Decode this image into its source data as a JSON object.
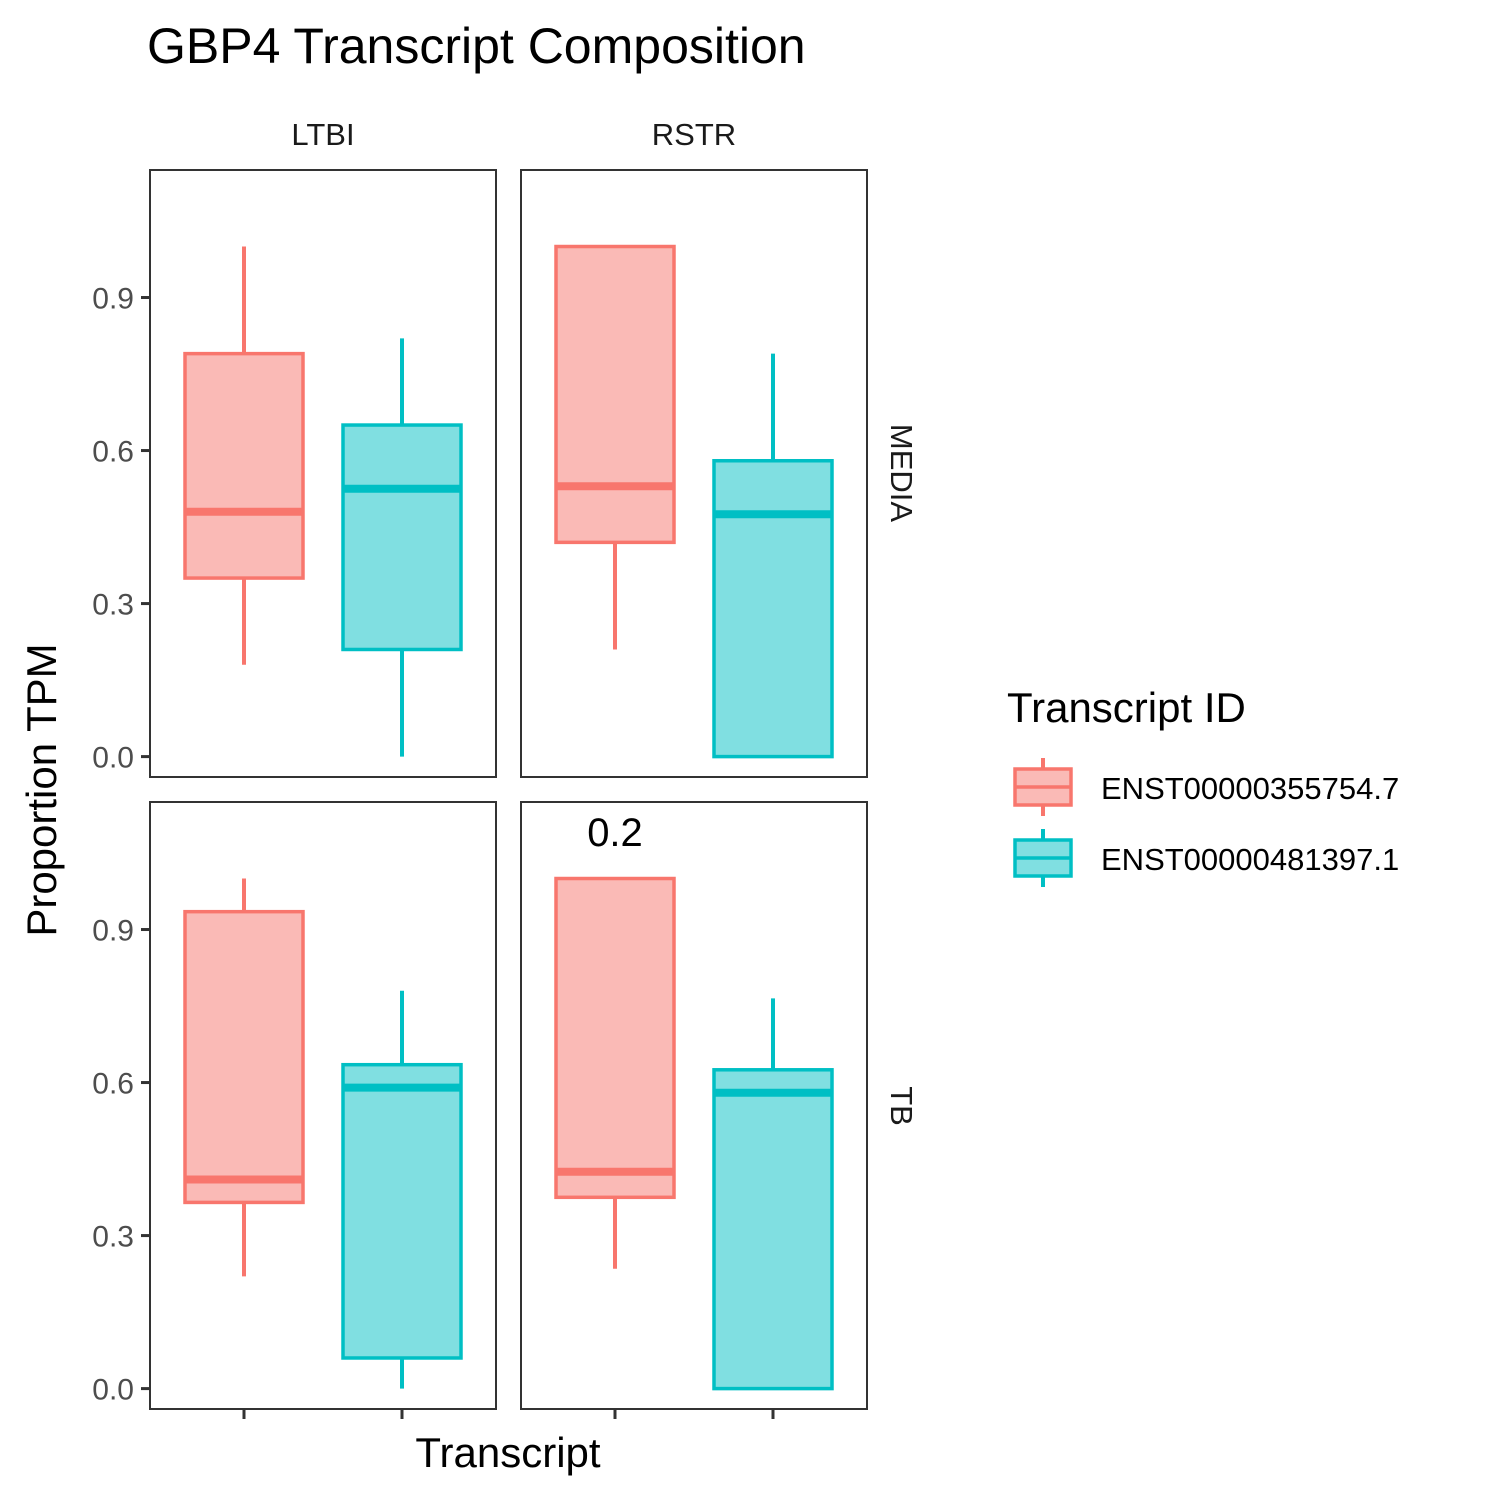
{
  "chart_data": {
    "type": "boxplot",
    "title": "GBP4 Transcript Composition",
    "xlabel": "Transcript",
    "ylabel": "Proportion TPM",
    "ylim": [
      -0.04,
      1.15
    ],
    "yticks": [
      "0.0",
      "0.3",
      "0.6",
      "0.9"
    ],
    "ytick_values": [
      0.0,
      0.3,
      0.6,
      0.9
    ],
    "col_facets": [
      "LTBI",
      "RSTR"
    ],
    "row_facets": [
      "MEDIA",
      "TB"
    ],
    "legend": {
      "title": "Transcript ID",
      "position": "right",
      "entries": [
        {
          "label": "ENST00000355754.7",
          "color": "#F8766D",
          "fill": "#FABAB6"
        },
        {
          "label": "ENST00000481397.1",
          "color": "#00BFC4",
          "fill": "#80DFE1"
        }
      ]
    },
    "panels": [
      {
        "row": "MEDIA",
        "col": "LTBI",
        "annotation": "",
        "boxes": [
          {
            "transcript": "ENST00000355754.7",
            "min": 0.18,
            "q1": 0.35,
            "median": 0.48,
            "q3": 0.79,
            "max": 1.0
          },
          {
            "transcript": "ENST00000481397.1",
            "min": 0.0,
            "q1": 0.21,
            "median": 0.525,
            "q3": 0.65,
            "max": 0.82
          }
        ]
      },
      {
        "row": "MEDIA",
        "col": "RSTR",
        "annotation": "",
        "boxes": [
          {
            "transcript": "ENST00000355754.7",
            "min": 0.21,
            "q1": 0.42,
            "median": 0.53,
            "q3": 1.0,
            "max": 1.0
          },
          {
            "transcript": "ENST00000481397.1",
            "min": 0.0,
            "q1": 0.0,
            "median": 0.475,
            "q3": 0.58,
            "max": 0.79
          }
        ]
      },
      {
        "row": "TB",
        "col": "LTBI",
        "annotation": "",
        "boxes": [
          {
            "transcript": "ENST00000355754.7",
            "min": 0.22,
            "q1": 0.365,
            "median": 0.41,
            "q3": 0.935,
            "max": 1.0
          },
          {
            "transcript": "ENST00000481397.1",
            "min": 0.0,
            "q1": 0.06,
            "median": 0.59,
            "q3": 0.635,
            "max": 0.78
          }
        ]
      },
      {
        "row": "TB",
        "col": "RSTR",
        "annotation": "0.2",
        "boxes": [
          {
            "transcript": "ENST00000355754.7",
            "min": 0.235,
            "q1": 0.375,
            "median": 0.425,
            "q3": 1.0,
            "max": 1.0
          },
          {
            "transcript": "ENST00000481397.1",
            "min": 0.0,
            "q1": 0.0,
            "median": 0.58,
            "q3": 0.625,
            "max": 0.765
          }
        ]
      }
    ]
  }
}
